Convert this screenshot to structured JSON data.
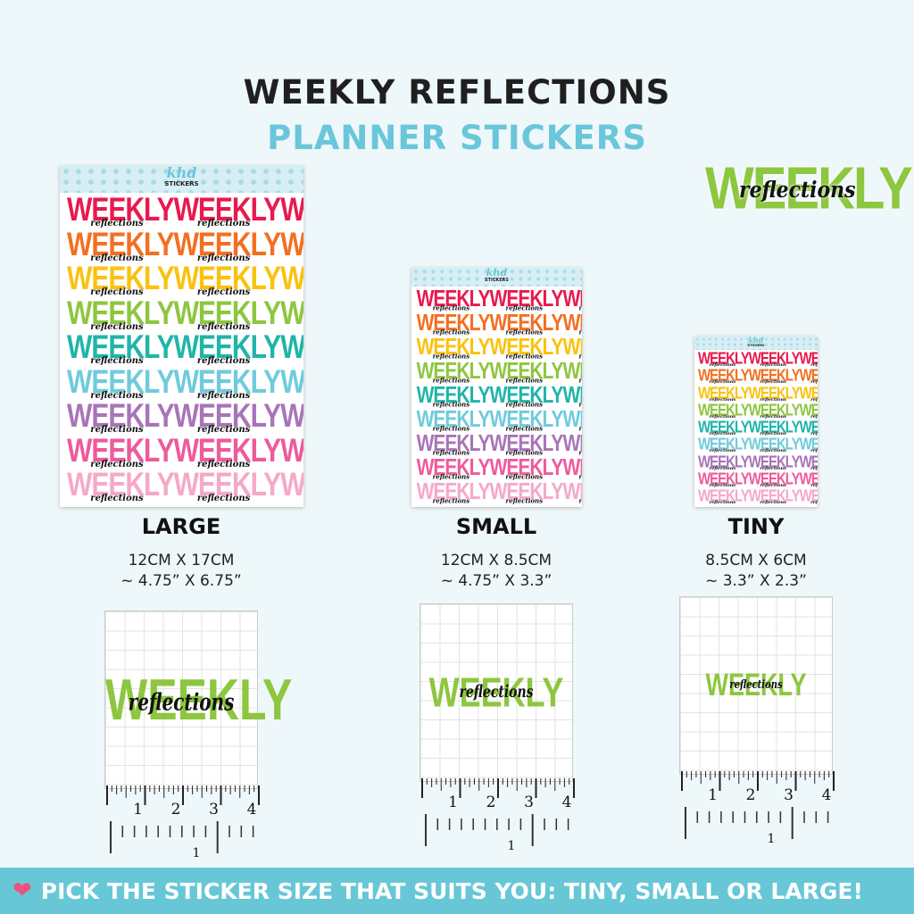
{
  "title": "WEEKLY REFLECTIONS",
  "subtitle": "PLANNER STICKERS",
  "sticker": {
    "main": "WEEKLY",
    "script": "reflections",
    "logo": "khd",
    "logo_sub": "STICKERS"
  },
  "row_colors": [
    "#e8194f",
    "#f36f21",
    "#f9c20f",
    "#8dc63f",
    "#1fb5a8",
    "#6fcbdc",
    "#a874b8",
    "#ee5a9c",
    "#f5a8c8"
  ],
  "accent": "#6ac6da",
  "sizes": [
    {
      "label": "LARGE",
      "metric": "12CM X 17CM",
      "imperial": "~ 4.75” X 6.75”"
    },
    {
      "label": "SMALL",
      "metric": "12CM X 8.5CM",
      "imperial": "~ 4.75” X 3.3”"
    },
    {
      "label": "TINY",
      "metric": "8.5CM X 6CM",
      "imperial": "~ 3.3” X 2.3”"
    }
  ],
  "ruler": {
    "inch_labels": [
      "1",
      "2",
      "3",
      "4"
    ],
    "cm_label": "1"
  },
  "banner": {
    "icon": "heart-icon",
    "text": "PICK THE STICKER SIZE THAT SUITS YOU: TINY, SMALL OR LARGE!"
  }
}
